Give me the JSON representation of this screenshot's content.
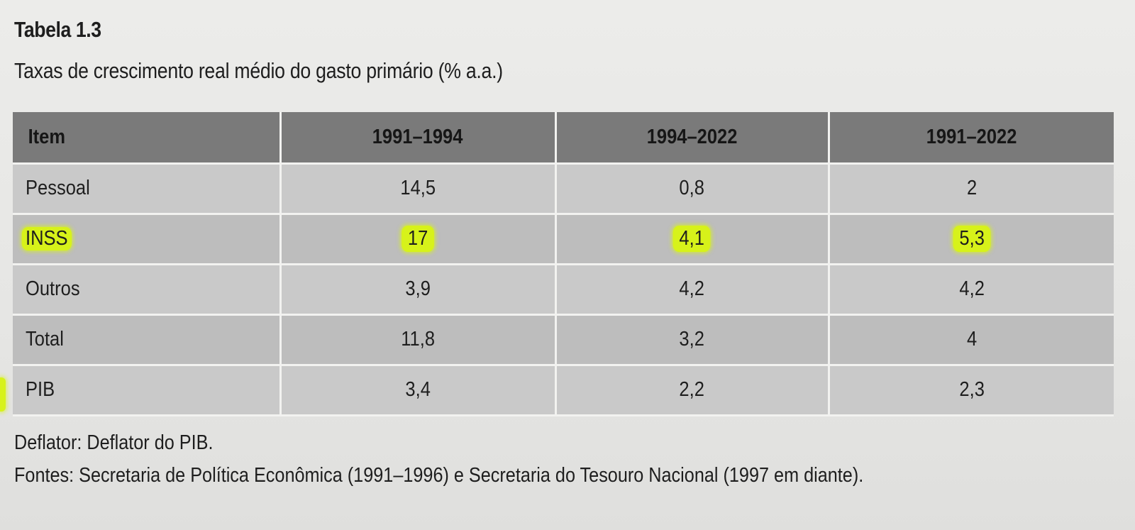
{
  "table_label": "Tabela 1.3",
  "table_title": "Taxas de crescimento real médio do gasto primário (% a.a.)",
  "columns": [
    "Item",
    "1991–1994",
    "1994–2022",
    "1991–2022"
  ],
  "rows": [
    {
      "item": "Pessoal",
      "values": [
        "14,5",
        "0,8",
        "2"
      ]
    },
    {
      "item": "INSS",
      "values": [
        "17",
        "4,1",
        "5,3"
      ]
    },
    {
      "item": "Outros",
      "values": [
        "3,9",
        "4,2",
        "4,2"
      ]
    },
    {
      "item": "Total",
      "values": [
        "11,8",
        "3,2",
        "4"
      ]
    },
    {
      "item": "PIB",
      "values": [
        "3,4",
        "2,2",
        "2,3"
      ]
    }
  ],
  "notes": {
    "deflator": "Deflator: Deflator do PIB.",
    "sources": "Fontes: Secretaria de Política Econômica (1991–1996) e Secretaria do Tesouro Nacional (1997 em diante)."
  },
  "colors": {
    "highlight": "#d7f21a",
    "header_bg": "#7a7a7a",
    "row_bg": "#c9c9c9"
  }
}
